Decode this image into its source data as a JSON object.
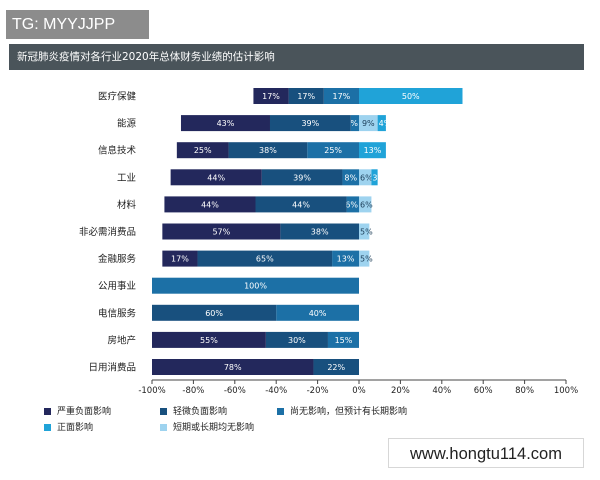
{
  "watermark": {
    "label": "TG: MYYJJPP"
  },
  "website": {
    "url": "www.hongtu114.com"
  },
  "chart_data": {
    "type": "bar",
    "orientation": "horizontal-stacked",
    "title": "新冠肺炎疫情对各行业2020年总体财务业绩的估计影响",
    "categories": [
      "医疗保健",
      "能源",
      "信息技术",
      "工业",
      "材料",
      "非必需消费品",
      "金融服务",
      "公用事业",
      "电信服务",
      "房地产",
      "日用消费品"
    ],
    "series": [
      {
        "name": "严重负面影响",
        "color": "#23285c",
        "direction": "negative",
        "values": [
          17,
          43,
          25,
          44,
          44,
          57,
          17,
          0,
          0,
          55,
          78
        ]
      },
      {
        "name": "轻微负面影响",
        "color": "#18507e",
        "direction": "negative",
        "values": [
          17,
          39,
          38,
          39,
          44,
          38,
          65,
          0,
          60,
          30,
          22
        ]
      },
      {
        "name": "尚无影响，但预计有长期影响",
        "color": "#1c70a6",
        "direction": "negative",
        "values": [
          17,
          4,
          25,
          8,
          6,
          0,
          13,
          100,
          40,
          15,
          0
        ]
      },
      {
        "name": "正面影响",
        "color": "#20a3d8",
        "direction": "positive",
        "values": [
          50,
          4,
          13,
          3,
          0,
          0,
          0,
          0,
          0,
          0,
          0
        ]
      },
      {
        "name": "短期或长期均无影响",
        "color": "#9ed3ef",
        "direction": "positive",
        "values": [
          0,
          9,
          0,
          6,
          6,
          5,
          5,
          0,
          0,
          0,
          0
        ]
      }
    ],
    "positive_order": [
      "短期或长期均无影响",
      "正面影响"
    ],
    "xlim": [
      -100,
      100
    ],
    "xticks": [
      "-100%",
      "-80%",
      "-60%",
      "-40%",
      "-20%",
      "0%",
      "20%",
      "40%",
      "60%",
      "80%",
      "100%"
    ],
    "legend_position": "bottom",
    "grid": false
  }
}
